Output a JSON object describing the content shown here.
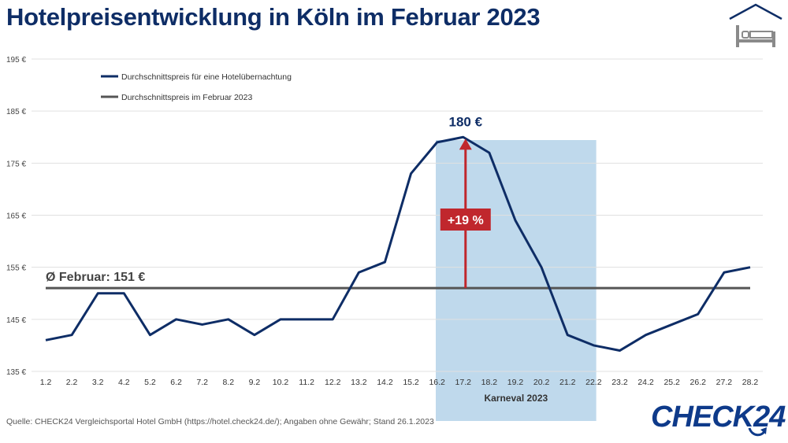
{
  "title": "Hotelpreisentwicklung in Köln im Februar 2023",
  "source": "Quelle: CHECK24 Vergleichsportal Hotel GmbH (https://hotel.check24.de/); Angaben ohne Gewähr; Stand 26.1.2023",
  "brand": "CHECK24",
  "icons": {
    "header": "hotel-bed-icon",
    "brand": "refresh-arrow-icon"
  },
  "colors": {
    "title": "#0e2d66",
    "series": "#0e2d66",
    "average": "#555555",
    "highlight": "#bfd9ec",
    "arrow": "#c0272d"
  },
  "chart_data": {
    "type": "line",
    "x": [
      "1.2",
      "2.2",
      "3.2",
      "4.2",
      "5.2",
      "6.2",
      "7.2",
      "8.2",
      "9.2",
      "10.2",
      "11.2",
      "12.2",
      "13.2",
      "14.2",
      "15.2",
      "16.2",
      "17.2",
      "18.2",
      "19.2",
      "20.2",
      "21.2",
      "22.2",
      "23.2",
      "24.2",
      "25.2",
      "26.2",
      "27.2",
      "28.2"
    ],
    "ylim": [
      135,
      195
    ],
    "yticks": [
      135,
      145,
      155,
      165,
      175,
      185,
      195
    ],
    "ytick_labels": [
      "135 €",
      "145 €",
      "155 €",
      "165 €",
      "175 €",
      "185 €",
      "195 €"
    ],
    "grid": true,
    "series": [
      {
        "name": "Durchschnittspreis für eine Hotelübernachtung",
        "values": [
          141,
          142,
          150,
          150,
          142,
          145,
          144,
          145,
          142,
          145,
          145,
          145,
          154,
          156,
          173,
          179,
          180,
          177,
          164,
          155,
          142,
          140,
          139,
          142,
          144,
          146,
          154,
          155
        ]
      }
    ],
    "average": {
      "name": "Durchschnittspreis im Februar 2023",
      "value": 151,
      "label": "Ø Februar: 151 €"
    },
    "highlight": {
      "from": "16.2",
      "to": "22.2",
      "label": "Karneval 2023"
    },
    "peak": {
      "x": "17.2",
      "value": 180,
      "label": "180 €",
      "increase_label": "+19 %"
    },
    "legend_position": "top-left"
  }
}
